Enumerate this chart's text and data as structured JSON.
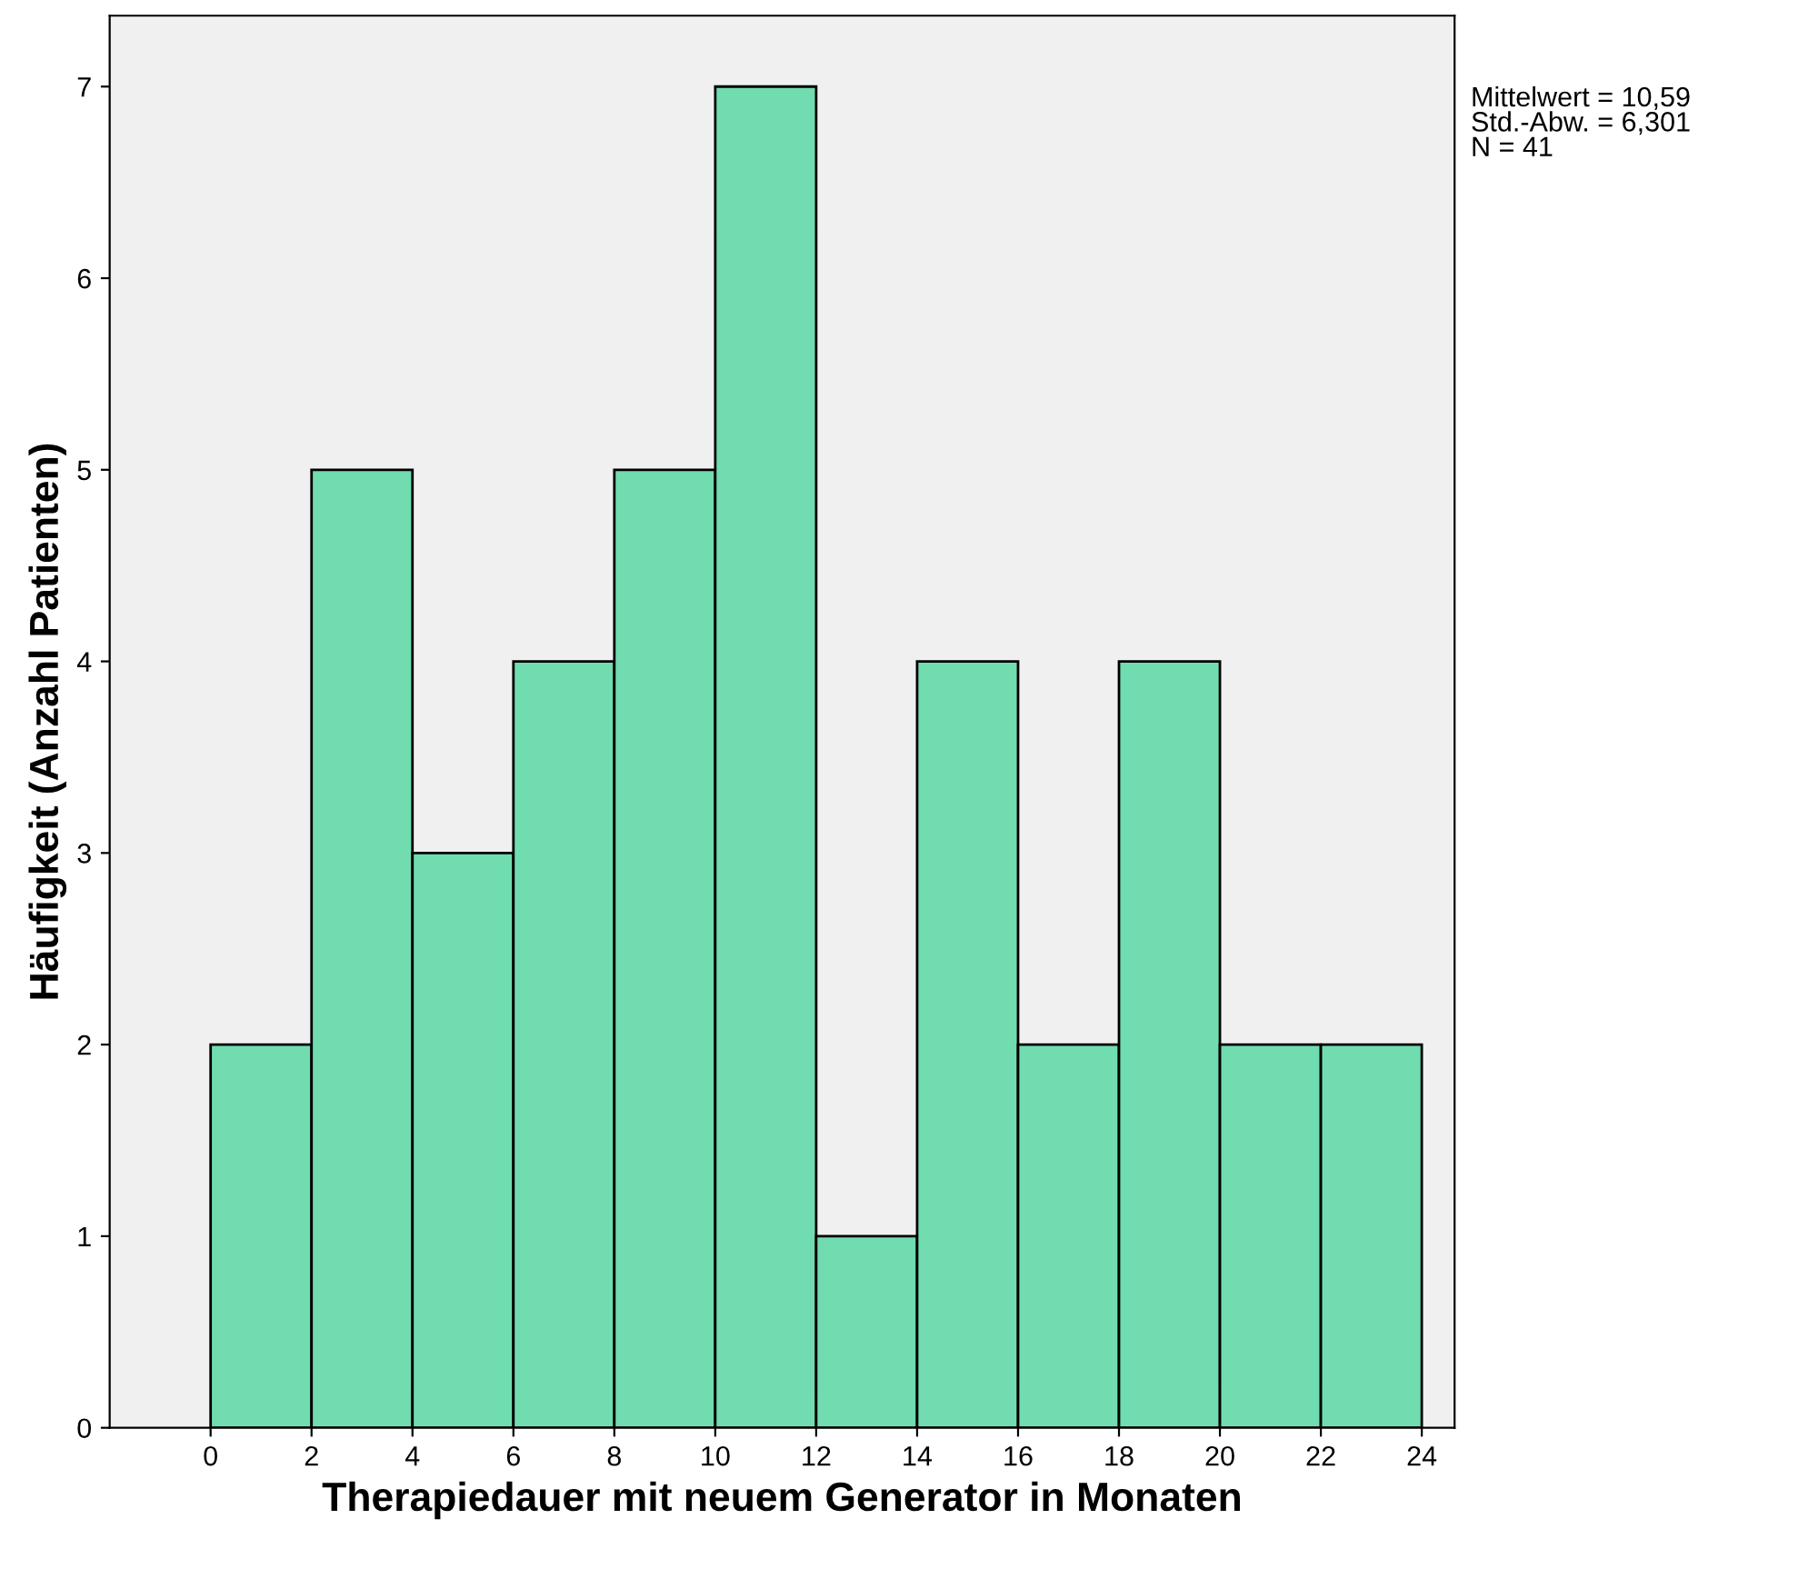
{
  "chart_data": {
    "type": "histogram",
    "xlabel": "Therapiedauer mit neuem Generator in Monaten",
    "ylabel": "Häufigkeit (Anzahl Patienten)",
    "bins": [
      0,
      2,
      4,
      6,
      8,
      10,
      12,
      14,
      16,
      18,
      20,
      22,
      24
    ],
    "values": [
      2,
      5,
      3,
      4,
      5,
      7,
      1,
      4,
      2,
      4,
      2,
      2
    ],
    "color": "#70dcb0",
    "xlim": [
      -2,
      24.65
    ],
    "xticks": [
      0,
      2,
      4,
      6,
      8,
      10,
      12,
      14,
      16,
      18,
      20,
      22,
      24
    ],
    "ylim": [
      0,
      7.37
    ],
    "yticks": [
      0,
      1,
      2,
      3,
      4,
      5,
      6,
      7
    ],
    "grid": false,
    "annotations": [
      "Mittelwert = 10,59\nStd.-Abw. = 6,301\nN = 41"
    ]
  }
}
